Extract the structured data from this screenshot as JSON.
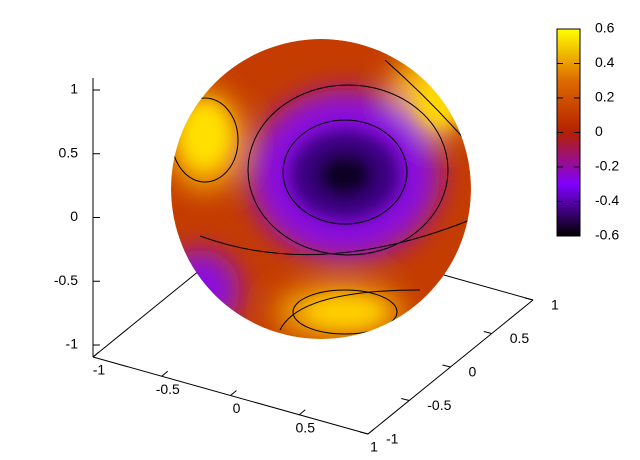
{
  "chart_data": {
    "type": "surface3d",
    "xlim": [
      -1,
      1
    ],
    "xticks": [
      -1,
      -0.5,
      0,
      0.5,
      1
    ],
    "ylim": [
      -1,
      1
    ],
    "yticks": [
      -1,
      -0.5,
      0,
      0.5,
      1
    ],
    "zlim": [
      -1,
      1
    ],
    "zticks": [
      -1,
      -0.5,
      0,
      0.5,
      1
    ],
    "cblim": [
      -0.6,
      0.6
    ],
    "cbticks": [
      -0.6,
      -0.4,
      -0.2,
      0,
      0.2,
      0.4,
      0.6
    ],
    "palette": [
      "#000000",
      "#8000ff",
      "#b42000",
      "#dd6b00",
      "#ffff00"
    ]
  }
}
